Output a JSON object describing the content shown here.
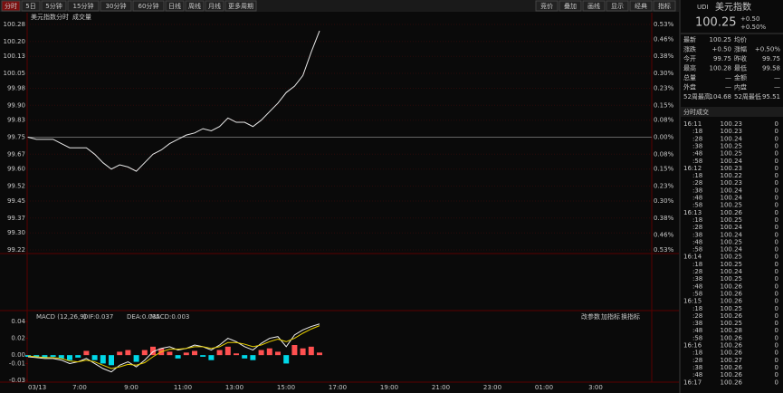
{
  "toolbar": {
    "periods": [
      "分时",
      "5日",
      "5分钟",
      "15分钟",
      "30分钟",
      "60分钟",
      "日线",
      "周线",
      "月线",
      "更多周期"
    ],
    "tools": [
      "竞价",
      "叠加",
      "画线",
      "显示",
      "经典",
      "指标"
    ]
  },
  "chart_data": [
    {
      "type": "line",
      "title": "美元指数",
      "tabs": [
        "分时",
        "成交量"
      ],
      "color": "#e8e8e8",
      "values": [
        99.75,
        99.74,
        99.74,
        99.74,
        99.72,
        99.7,
        99.7,
        99.7,
        99.67,
        99.63,
        99.6,
        99.62,
        99.61,
        99.59,
        99.63,
        99.67,
        99.69,
        99.72,
        99.74,
        99.76,
        99.77,
        99.79,
        99.78,
        99.8,
        99.84,
        99.82,
        99.82,
        99.8,
        99.83,
        99.87,
        99.91,
        99.96,
        99.99,
        100.04,
        100.15,
        100.25
      ],
      "ylim": [
        99.22,
        100.28
      ],
      "yticks": [
        100.28,
        {
          "value": 100.2,
          "label": "100.20"
        },
        100.13,
        100.05,
        99.98,
        {
          "value": 99.9,
          "label": "99.90"
        },
        99.83,
        99.75,
        99.67,
        {
          "value": 99.6,
          "label": "99.60"
        },
        99.52,
        99.45,
        99.37,
        {
          "value": 99.3,
          "label": "99.30"
        },
        99.22
      ],
      "y2lim": [
        -0.53,
        0.53
      ],
      "y2ticks": [
        {
          "value": 0.53,
          "label": "0.53%"
        },
        {
          "value": 0.46,
          "label": "0.46%"
        },
        {
          "value": 0.38,
          "label": "0.38%"
        },
        {
          "value": 0.3,
          "label": "0.30%"
        },
        {
          "value": 0.23,
          "label": "0.23%"
        },
        {
          "value": 0.15,
          "label": "0.15%"
        },
        {
          "value": 0.08,
          "label": "0.08%"
        },
        {
          "value": 0,
          "label": "0.00%"
        },
        {
          "value": -0.08,
          "label": "0.08%"
        },
        {
          "value": -0.15,
          "label": "0.15%"
        },
        {
          "value": -0.23,
          "label": "0.23%"
        },
        {
          "value": -0.3,
          "label": "0.30%"
        },
        {
          "value": -0.38,
          "label": "0.38%"
        },
        {
          "value": -0.46,
          "label": "0.46%"
        },
        {
          "value": -0.53,
          "label": "0.53%"
        }
      ],
      "xtick_labels": [
        "03/13",
        "7:00",
        "9:00",
        "11:00",
        "13:00",
        "15:00",
        "17:00",
        "19:00",
        "21:00",
        "23:00",
        "01:00",
        "3:00"
      ],
      "grid": true
    },
    {
      "type": "macd",
      "title": "MACD (12,26,9)",
      "buttons": [
        "改参数",
        "加指标",
        "换指标"
      ],
      "series": [
        {
          "name": "DIF:0.037",
          "color": "#f0f0f0",
          "values": [
            -0.002,
            -0.003,
            -0.004,
            -0.004,
            -0.006,
            -0.01,
            -0.008,
            -0.004,
            -0.01,
            -0.016,
            -0.02,
            -0.012,
            -0.008,
            -0.014,
            -0.006,
            0.004,
            0.008,
            0.01,
            0.006,
            0.008,
            0.012,
            0.01,
            0.006,
            0.012,
            0.02,
            0.016,
            0.01,
            0.006,
            0.014,
            0.02,
            0.022,
            0.01,
            0.024,
            0.03,
            0.034,
            0.037
          ]
        },
        {
          "name": "DEA:0.035",
          "color": "#e8d000",
          "values": [
            -0.001,
            -0.002,
            -0.003,
            -0.003,
            -0.004,
            -0.007,
            -0.008,
            -0.006,
            -0.008,
            -0.012,
            -0.016,
            -0.014,
            -0.011,
            -0.012,
            -0.009,
            -0.002,
            0.004,
            0.007,
            0.007,
            0.008,
            0.01,
            0.01,
            0.008,
            0.01,
            0.015,
            0.015,
            0.013,
            0.01,
            0.012,
            0.016,
            0.019,
            0.016,
            0.02,
            0.026,
            0.031,
            0.035
          ]
        },
        {
          "name": "MACD:0.003",
          "color": "#ff5050",
          "negative_color": "#00d8e8",
          "values": [
            -0.002,
            -0.002,
            -0.003,
            -0.002,
            -0.004,
            -0.006,
            -0.003,
            0.005,
            -0.006,
            -0.01,
            -0.012,
            0.004,
            0.006,
            -0.008,
            0.006,
            0.01,
            0.008,
            0.004,
            -0.004,
            0.003,
            0.005,
            -0.002,
            -0.006,
            0.006,
            0.01,
            0.002,
            -0.004,
            -0.006,
            0.006,
            0.008,
            0.004,
            -0.01,
            0.012,
            0.008,
            0.01,
            0.003
          ]
        }
      ],
      "ylim": [
        -0.03,
        0.04
      ],
      "yticks": [
        0.04,
        0.02,
        {
          "value": 0,
          "label": "0.00"
        },
        -0.01,
        -0.03
      ]
    }
  ],
  "quote": {
    "code": "UDI",
    "name": "美元指数",
    "price": "100.25",
    "change": "+0.50",
    "change_pct": "+0.50%",
    "rows": [
      [
        "最新",
        "100.25",
        "均价",
        ""
      ],
      [
        "涨跌",
        "+0.50",
        "涨幅",
        "+0.50%"
      ],
      [
        "今开",
        "99.75",
        "昨收",
        "99.75"
      ],
      [
        "最高",
        "100.28",
        "最低",
        "99.58"
      ],
      [
        "总量",
        "—",
        "金额",
        "—"
      ],
      [
        "外盘",
        "—",
        "内盘",
        "—"
      ],
      [
        "52周最高",
        "104.68",
        "52周最低",
        "95.51"
      ]
    ]
  },
  "trades": {
    "title": "分时成交",
    "rows": [
      [
        "16:11",
        "100.23",
        "0"
      ],
      [
        ":18",
        "100.23",
        "0"
      ],
      [
        ":28",
        "100.24",
        "0"
      ],
      [
        ":38",
        "100.25",
        "0"
      ],
      [
        ":48",
        "100.25",
        "0"
      ],
      [
        ":58",
        "100.24",
        "0"
      ],
      [
        "16:12",
        "100.23",
        "0"
      ],
      [
        ":18",
        "100.22",
        "0"
      ],
      [
        ":28",
        "100.23",
        "0"
      ],
      [
        ":38",
        "100.24",
        "0"
      ],
      [
        ":48",
        "100.24",
        "0"
      ],
      [
        ":58",
        "100.25",
        "0"
      ],
      [
        "16:13",
        "100.26",
        "0"
      ],
      [
        ":18",
        "100.25",
        "0"
      ],
      [
        ":28",
        "100.24",
        "0"
      ],
      [
        ":38",
        "100.24",
        "0"
      ],
      [
        ":48",
        "100.25",
        "0"
      ],
      [
        ":58",
        "100.24",
        "0"
      ],
      [
        "16:14",
        "100.25",
        "0"
      ],
      [
        ":18",
        "100.25",
        "0"
      ],
      [
        ":28",
        "100.24",
        "0"
      ],
      [
        ":38",
        "100.25",
        "0"
      ],
      [
        ":48",
        "100.26",
        "0"
      ],
      [
        ":58",
        "100.26",
        "0"
      ],
      [
        "16:15",
        "100.26",
        "0"
      ],
      [
        ":18",
        "100.25",
        "0"
      ],
      [
        ":28",
        "100.26",
        "0"
      ],
      [
        ":38",
        "100.25",
        "0"
      ],
      [
        ":48",
        "100.28",
        "0"
      ],
      [
        ":58",
        "100.26",
        "0"
      ],
      [
        "16:16",
        "100.26",
        "0"
      ],
      [
        ":18",
        "100.26",
        "0"
      ],
      [
        ":28",
        "100.27",
        "0"
      ],
      [
        ":38",
        "100.26",
        "0"
      ],
      [
        ":48",
        "100.26",
        "0"
      ],
      [
        "16:17",
        "100.26",
        "0"
      ]
    ]
  }
}
